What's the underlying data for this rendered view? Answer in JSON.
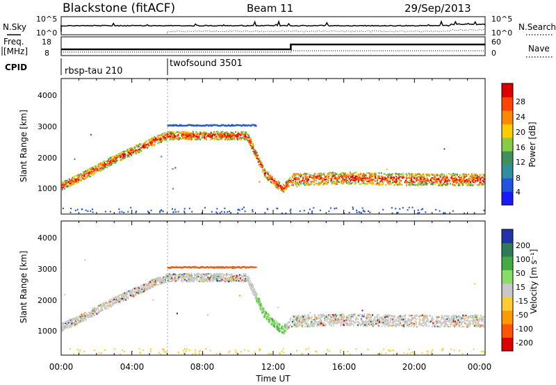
{
  "header": {
    "station": "Blackstone (fitACF)",
    "beam": "Beam 11",
    "date": "29/Sep/2013"
  },
  "top_panels": {
    "nsky_label": "N.Sky",
    "nsky_ticks": [
      "10^5",
      "10^0"
    ],
    "nsearch_label": "N.Search",
    "nsearch_ticks": [
      "10^5",
      "10^0"
    ],
    "freq_label_line1": "Freq.",
    "freq_label_line2": "[MHz]",
    "freq_ticks": [
      "18",
      "8"
    ],
    "nave_label": "Nave",
    "nave_ticks": [
      "60",
      "0"
    ],
    "cpid_label": "CPID",
    "cpid_segments": [
      {
        "name": "rbsp-tau 210",
        "start_hour": 0,
        "end_hour": 6
      },
      {
        "name": "twofsound 3501",
        "start_hour": 6,
        "end_hour": 24
      }
    ],
    "freq_switch_hour": 13
  },
  "power_panel": {
    "ylabel": "Slant Range [km]",
    "yticks": [
      "1000",
      "2000",
      "3000",
      "4000"
    ],
    "colorbar_label": "Power [dB]",
    "colorbar_ticks": [
      "4",
      "8",
      "12",
      "16",
      "20",
      "24",
      "28"
    ],
    "colors": [
      "#1a1aff",
      "#2255dd",
      "#2f8f9f",
      "#3f8f5f",
      "#88cc44",
      "#ffcc00",
      "#ff8800",
      "#ff4400",
      "#dd0000"
    ]
  },
  "velocity_panel": {
    "ylabel": "Slant Range [km]",
    "yticks": [
      "1000",
      "2000",
      "3000",
      "4000"
    ],
    "colorbar_label": "Velocity [m s⁻¹]",
    "colorbar_ticks": [
      "200",
      "100",
      "50",
      "15",
      "-15",
      "-50",
      "-100",
      "-200"
    ],
    "colors": [
      "#2233aa",
      "#2f7a5a",
      "#44aa44",
      "#88dd66",
      "#c8c8c8",
      "#ffcc33",
      "#ff9900",
      "#ff5500",
      "#dd0000"
    ]
  },
  "x_axis": {
    "label": "Time UT",
    "ticks": [
      "00:00",
      "04:00",
      "08:00",
      "12:00",
      "16:00",
      "20:00",
      "00:00"
    ]
  },
  "chart_data": {
    "type": "heatmap",
    "title": "Blackstone (fitACF) Beam 11 29/Sep/2013",
    "xlabel": "Time UT",
    "ylabel": "Slant Range [km]",
    "xlim_hours": [
      0,
      24
    ],
    "ylim_km": [
      180,
      4500
    ],
    "power_colorbar": {
      "label": "Power [dB]",
      "ticks": [
        4,
        8,
        12,
        16,
        20,
        24,
        28
      ]
    },
    "velocity_colorbar": {
      "label": "Velocity [m s⁻¹]",
      "ticks": [
        200,
        100,
        50,
        15,
        -15,
        -50,
        -100,
        -200
      ]
    },
    "ground_scatter_band": {
      "description_points_hour_km": [
        [
          0.0,
          1100
        ],
        [
          1.0,
          1350
        ],
        [
          2.0,
          1650
        ],
        [
          3.0,
          1950
        ],
        [
          4.0,
          2200
        ],
        [
          5.5,
          2600
        ],
        [
          6.0,
          2700
        ],
        [
          10.5,
          2700
        ],
        [
          11.5,
          1500
        ],
        [
          12.5,
          1000
        ],
        [
          13.0,
          1300
        ],
        [
          16.0,
          1350
        ],
        [
          20.0,
          1300
        ],
        [
          24.0,
          1300
        ]
      ]
    },
    "scatter_regions_hour_km": [
      {
        "x": [
          0,
          6
        ],
        "y": [
          1500,
          2700
        ],
        "power_db": 10
      },
      {
        "x": [
          0.3,
          2.5
        ],
        "y": [
          2700,
          4400
        ],
        "power_db": 6
      },
      {
        "x": [
          5.8,
          11
        ],
        "y": [
          900,
          3000
        ],
        "power_db": 8
      },
      {
        "x": [
          11,
          13
        ],
        "y": [
          800,
          2500
        ],
        "power_db": 22
      },
      {
        "x": [
          13,
          24
        ],
        "y": [
          1000,
          1700
        ],
        "power_db": 18
      },
      {
        "x": [
          20,
          24
        ],
        "y": [
          1900,
          2700
        ],
        "power_db": 8
      }
    ]
  }
}
